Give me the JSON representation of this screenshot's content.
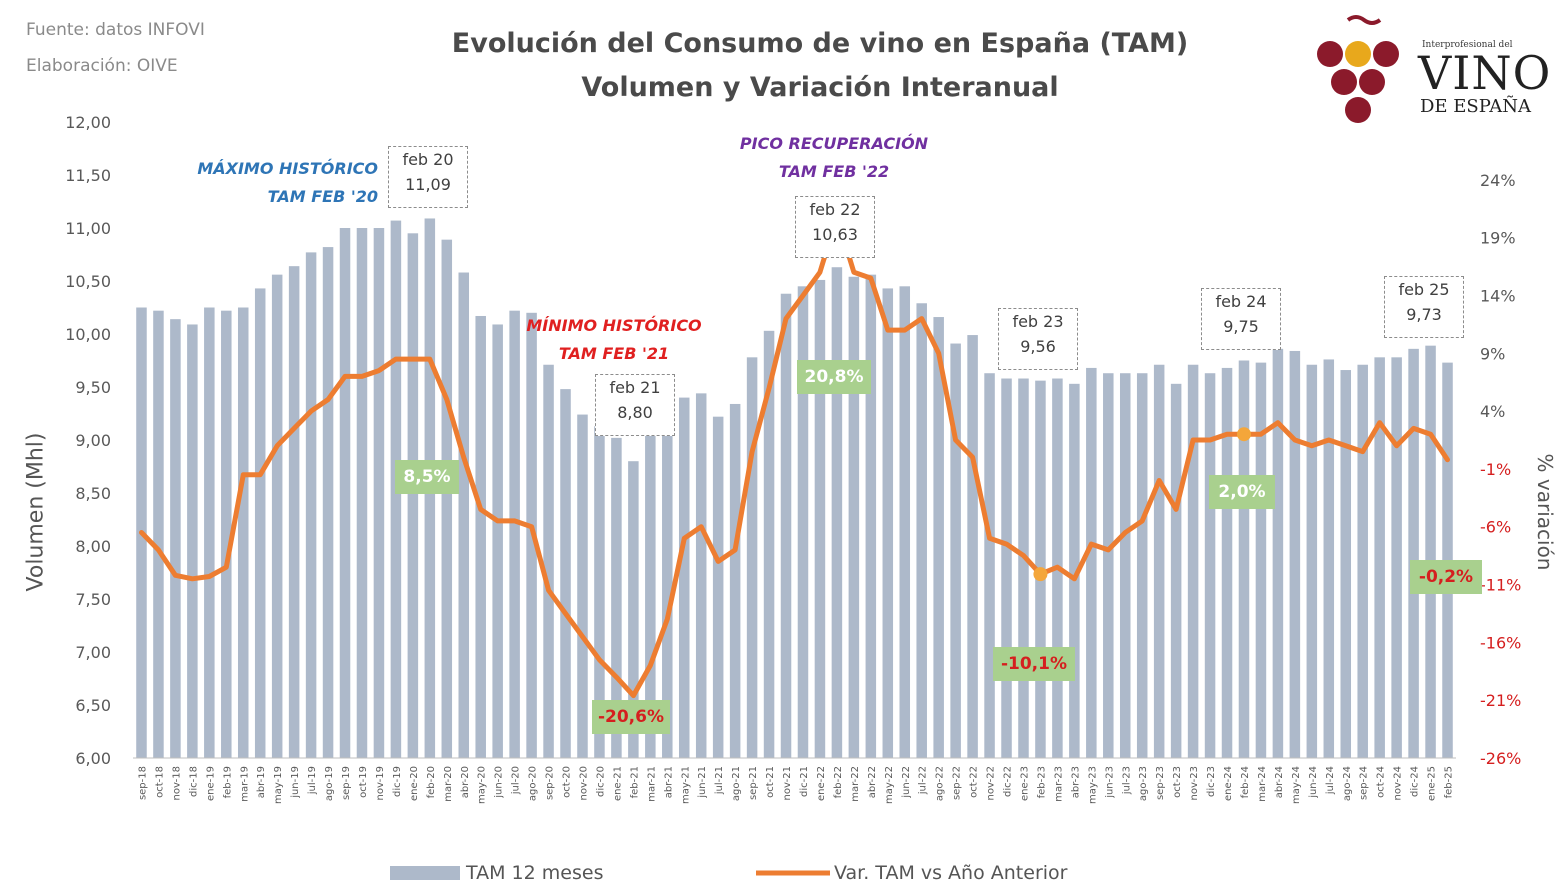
{
  "source": {
    "line1": "Fuente: datos INFOVI",
    "line2": "Elaboración: OIVE"
  },
  "title": {
    "line1": "Evolución del Consumo de vino en España (TAM)",
    "line2": "Volumen y Variación Interanual"
  },
  "logo": {
    "small": "Interprofesional del",
    "big": "VINO",
    "sub": "DE ESPAÑA"
  },
  "annotations": {
    "max": {
      "line1": "MÁXIMO HISTÓRICO",
      "line2": "TAM FEB '20",
      "color": "#2e75b6"
    },
    "min": {
      "line1": "MÍNIMO HISTÓRICO",
      "line2": "TAM FEB '21",
      "color": "#e02020"
    },
    "peak": {
      "line1": "PICO RECUPERACIÓN",
      "line2": "TAM FEB '22",
      "color": "#7030a0"
    }
  },
  "peaks": [
    {
      "label": "feb 20",
      "value": "11,09"
    },
    {
      "label": "feb 21",
      "value": "8,80"
    },
    {
      "label": "feb 22",
      "value": "10,63"
    },
    {
      "label": "feb 23",
      "value": "9,56"
    },
    {
      "label": "feb 24",
      "value": "9,75"
    },
    {
      "label": "feb 25",
      "value": "9,73"
    }
  ],
  "variation_labels": [
    "8,5%",
    "-20,6%",
    "20,8%",
    "-10,1%",
    "2,0%",
    "-0,2%"
  ],
  "legend": {
    "bars": "TAM 12 meses",
    "line": "Var. TAM vs Año Anterior"
  },
  "colors": {
    "bar": "#adb9ca",
    "line": "#ed7d31",
    "label_bg": "#a9d08e",
    "neg": "#d51f1f"
  },
  "chart_data": {
    "type": "bar+line",
    "title": "Evolución del Consumo de vino en España (TAM) — Volumen y Variación Interanual",
    "ylabel": "Volumen (Mhl)",
    "y2label": "% variación",
    "ylim": [
      6.0,
      12.0
    ],
    "y2lim": [
      -26,
      29
    ],
    "yticks": [
      "6,00",
      "6,50",
      "7,00",
      "7,50",
      "8,00",
      "8,50",
      "9,00",
      "9,50",
      "10,00",
      "10,50",
      "11,00",
      "11,50",
      "12,00"
    ],
    "y2ticks": [
      "-26%",
      "-21%",
      "-16%",
      "-11%",
      "-6%",
      "-1%",
      "4%",
      "9%",
      "14%",
      "19%",
      "24%"
    ],
    "categories": [
      "sep-18",
      "oct-18",
      "nov-18",
      "dic-18",
      "ene-19",
      "feb-19",
      "mar-19",
      "abr-19",
      "may-19",
      "jun-19",
      "jul-19",
      "ago-19",
      "sep-19",
      "oct-19",
      "nov-19",
      "dic-19",
      "ene-20",
      "feb-20",
      "mar-20",
      "abr-20",
      "may-20",
      "jun-20",
      "jul-20",
      "ago-20",
      "sep-20",
      "oct-20",
      "nov-20",
      "dic-20",
      "ene-21",
      "feb-21",
      "mar-21",
      "abr-21",
      "may-21",
      "jun-21",
      "jul-21",
      "ago-21",
      "sep-21",
      "oct-21",
      "nov-21",
      "dic-21",
      "ene-22",
      "feb-22",
      "mar-22",
      "abr-22",
      "may-22",
      "jun-22",
      "jul-22",
      "ago-22",
      "sep-22",
      "oct-22",
      "nov-22",
      "dic-22",
      "ene-23",
      "feb-23",
      "mar-23",
      "abr-23",
      "may-23",
      "jun-23",
      "jul-23",
      "ago-23",
      "sep-23",
      "oct-23",
      "nov-23",
      "dic-23",
      "ene-24",
      "feb-24",
      "mar-24",
      "abr-24",
      "may-24",
      "jun-24",
      "jul-24",
      "ago-24",
      "sep-24",
      "oct-24",
      "nov-24",
      "dic-24",
      "ene-25",
      "feb-25"
    ],
    "series": [
      {
        "name": "TAM 12 meses",
        "type": "bar",
        "values": [
          10.25,
          10.22,
          10.14,
          10.09,
          10.25,
          10.22,
          10.25,
          10.43,
          10.56,
          10.64,
          10.77,
          10.82,
          11.0,
          11.0,
          11.0,
          11.07,
          10.95,
          11.09,
          10.89,
          10.58,
          10.17,
          10.09,
          10.22,
          10.2,
          9.71,
          9.48,
          9.24,
          9.13,
          9.02,
          8.8,
          9.08,
          9.12,
          9.4,
          9.44,
          9.22,
          9.34,
          9.78,
          10.03,
          10.38,
          10.45,
          10.51,
          10.63,
          10.54,
          10.56,
          10.43,
          10.45,
          10.29,
          10.16,
          9.91,
          9.99,
          9.63,
          9.58,
          9.58,
          9.56,
          9.58,
          9.53,
          9.68,
          9.63,
          9.63,
          9.63,
          9.71,
          9.53,
          9.71,
          9.63,
          9.68,
          9.75,
          9.73,
          9.86,
          9.84,
          9.71,
          9.76,
          9.66,
          9.71,
          9.78,
          9.78,
          9.86,
          9.89,
          9.73
        ]
      },
      {
        "name": "Var. TAM vs Año Anterior",
        "type": "line",
        "values": [
          -6.5,
          -8.0,
          -10.2,
          -10.5,
          -10.3,
          -9.5,
          -1.5,
          -1.5,
          1.0,
          2.5,
          4.0,
          5.0,
          7.0,
          7.0,
          7.5,
          8.5,
          8.5,
          8.5,
          5.0,
          0.0,
          -4.5,
          -5.5,
          -5.5,
          -6.0,
          -11.5,
          -13.5,
          -15.5,
          -17.5,
          -19.0,
          -20.6,
          -18.0,
          -14.0,
          -7.0,
          -6.0,
          -9.0,
          -8.0,
          0.5,
          6.0,
          12.0,
          14.0,
          16.0,
          20.8,
          16.0,
          15.5,
          11.0,
          11.0,
          12.0,
          9.0,
          1.5,
          0.0,
          -7.0,
          -7.5,
          -8.5,
          -10.1,
          -9.5,
          -10.5,
          -7.5,
          -8.0,
          -6.5,
          -5.5,
          -2.0,
          -4.5,
          1.5,
          1.5,
          2.0,
          2.0,
          2.0,
          3.0,
          1.5,
          1.0,
          1.5,
          1.0,
          0.5,
          3.0,
          1.0,
          2.5,
          2.0,
          -0.2
        ]
      }
    ],
    "legend": "bottom"
  }
}
